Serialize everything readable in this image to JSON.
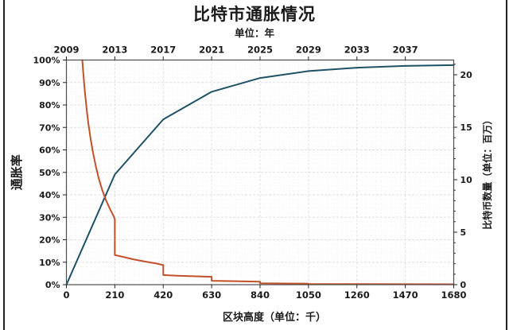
{
  "title": "比特市通胀情况",
  "subtitle": "单位：年",
  "chart_data": {
    "type": "line",
    "title": "比特市通胀情况",
    "subtitle": "单位：年",
    "x_bottom": {
      "label": "区块高度（单位：千）",
      "range": [
        0,
        1680
      ],
      "ticks": [
        0,
        210,
        420,
        630,
        840,
        1050,
        1260,
        1470,
        1680
      ],
      "tick_labels": [
        "0",
        "210",
        "420",
        "630",
        "840",
        "1050",
        "1260",
        "1470",
        "1680"
      ]
    },
    "x_top": {
      "label": "单位：年",
      "ticks": [
        2009,
        2013,
        2017,
        2021,
        2025,
        2029,
        2033,
        2037
      ],
      "tick_labels": [
        "2009",
        "2013",
        "2017",
        "2021",
        "2025",
        "2029",
        "2033",
        "2037"
      ],
      "start_year": 2009,
      "blocks_per_year": 52.5
    },
    "y_left": {
      "label": "通胀率",
      "range": [
        0,
        100
      ],
      "ticks": [
        0,
        10,
        20,
        30,
        40,
        50,
        60,
        70,
        80,
        90,
        100
      ],
      "tick_labels": [
        "0%",
        "10%",
        "20%",
        "30%",
        "40%",
        "50%",
        "60%",
        "70%",
        "80%",
        "90%",
        "100%"
      ]
    },
    "y_right": {
      "label": "比特币数量（单位：百万）",
      "range": [
        0,
        21.4
      ],
      "ticks": [
        0,
        5,
        10,
        15,
        20
      ],
      "tick_labels": [
        "0",
        "5",
        "10",
        "15",
        "20"
      ]
    },
    "grid": {
      "minor_x_step": 21,
      "minor_y_step": 2,
      "major_color": "#d4d4d4",
      "minor_color": "#ececec"
    },
    "series": [
      {
        "name": "btc-supply-millions",
        "axis": "right",
        "color": "#1d5165",
        "points": [
          [
            0,
            0
          ],
          [
            210,
            10.5
          ],
          [
            420,
            15.75
          ],
          [
            630,
            18.375
          ],
          [
            840,
            19.688
          ],
          [
            1050,
            20.344
          ],
          [
            1260,
            20.672
          ],
          [
            1470,
            20.836
          ],
          [
            1680,
            20.918
          ]
        ]
      },
      {
        "name": "inflation-rate-percent",
        "axis": "left",
        "color": "#c4502a",
        "points": [
          [
            69,
            100
          ],
          [
            74,
            93
          ],
          [
            80,
            86
          ],
          [
            87,
            79
          ],
          [
            95,
            72
          ],
          [
            105,
            65
          ],
          [
            116,
            58.5
          ],
          [
            128,
            52.5
          ],
          [
            141,
            47
          ],
          [
            156,
            42
          ],
          [
            172,
            37.5
          ],
          [
            190,
            33.5
          ],
          [
            205,
            30.5
          ],
          [
            210,
            29
          ],
          [
            210,
            13.2
          ],
          [
            245,
            12.4
          ],
          [
            290,
            11.3
          ],
          [
            340,
            10.3
          ],
          [
            390,
            9.4
          ],
          [
            420,
            8.7
          ],
          [
            420,
            4.3
          ],
          [
            480,
            4.0
          ],
          [
            550,
            3.75
          ],
          [
            630,
            3.5
          ],
          [
            630,
            1.75
          ],
          [
            730,
            1.55
          ],
          [
            840,
            1.3
          ],
          [
            840,
            0.62
          ],
          [
            1000,
            0.5
          ],
          [
            1050,
            0.45
          ],
          [
            1050,
            0.3
          ],
          [
            1260,
            0.25
          ],
          [
            1470,
            0.2
          ],
          [
            1680,
            0.17
          ]
        ]
      }
    ],
    "frame_color": "#4d4d4d",
    "text_color": "#1a1a1a",
    "tick_color": "#222222"
  }
}
